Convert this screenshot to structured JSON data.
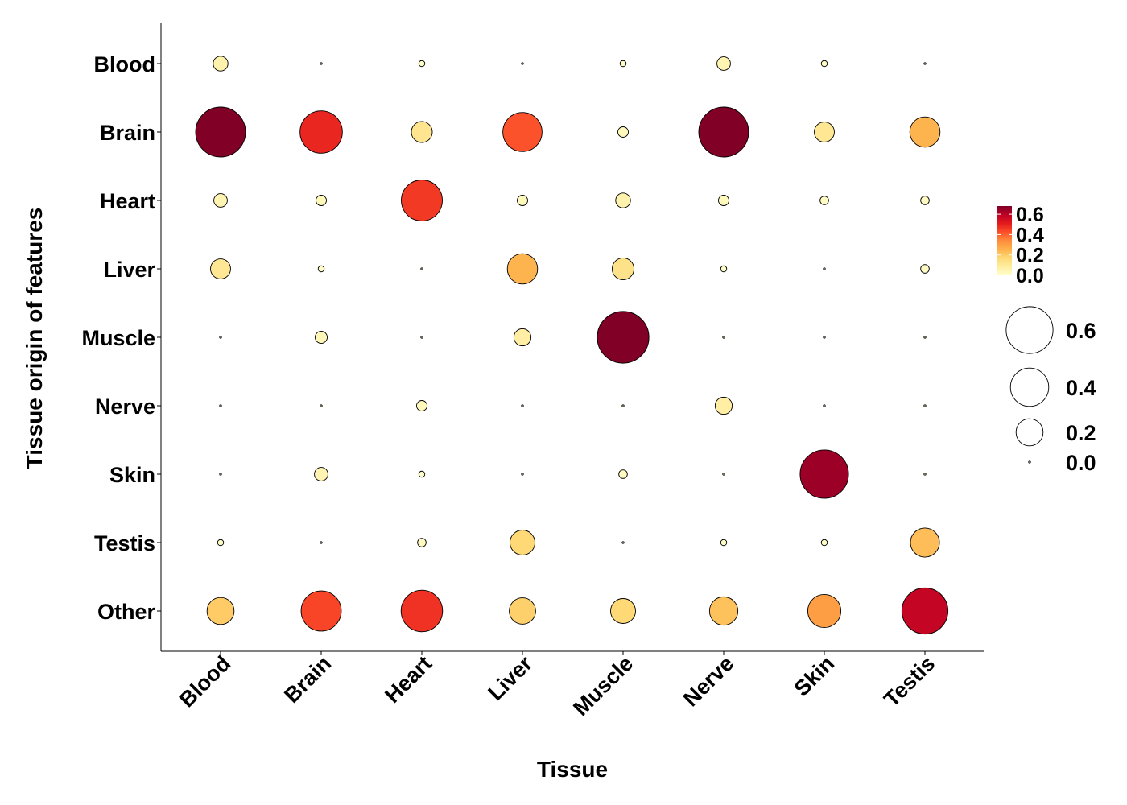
{
  "chart_data": {
    "type": "bubble-heatmap",
    "title": "",
    "xlabel": "Tissue",
    "ylabel": "Tissue origin of features",
    "x_categories": [
      "Blood",
      "Brain",
      "Heart",
      "Liver",
      "Muscle",
      "Nerve",
      "Skin",
      "Testis"
    ],
    "y_categories": [
      "Blood",
      "Brain",
      "Heart",
      "Liver",
      "Muscle",
      "Nerve",
      "Skin",
      "Testis",
      "Other"
    ],
    "values": [
      [
        0.06,
        0.0,
        0.01,
        0.0,
        0.01,
        0.05,
        0.01,
        0.0
      ],
      [
        0.68,
        0.49,
        0.12,
        0.42,
        0.03,
        0.68,
        0.11,
        0.25
      ],
      [
        0.05,
        0.03,
        0.46,
        0.03,
        0.06,
        0.03,
        0.02,
        0.02
      ],
      [
        0.11,
        0.01,
        0.0,
        0.25,
        0.13,
        0.01,
        0.0,
        0.02
      ],
      [
        0.0,
        0.04,
        0.0,
        0.08,
        0.73,
        0.0,
        0.0,
        0.0
      ],
      [
        0.0,
        0.0,
        0.03,
        0.0,
        0.0,
        0.08,
        0.0,
        0.0
      ],
      [
        0.0,
        0.05,
        0.01,
        0.0,
        0.02,
        0.0,
        0.64,
        0.0
      ],
      [
        0.01,
        0.0,
        0.02,
        0.17,
        0.0,
        0.01,
        0.01,
        0.23
      ],
      [
        0.2,
        0.44,
        0.47,
        0.19,
        0.17,
        0.22,
        0.3,
        0.58
      ]
    ],
    "color_scale": {
      "colors": [
        "#ffffcc",
        "#ffeda0",
        "#fed976",
        "#feb24c",
        "#fd8d3c",
        "#fc4e2a",
        "#e31a1c",
        "#bd0026",
        "#800026"
      ],
      "domain": [
        0,
        0.68
      ],
      "ticks": [
        "0.0",
        "0.2",
        "0.4",
        "0.6"
      ]
    },
    "size_legend": {
      "values": [
        0.6,
        0.4,
        0.2,
        0.0
      ],
      "labels": [
        "0.6",
        "0.4",
        "0.2",
        "0.0"
      ]
    },
    "legend_position": "right",
    "grid": false
  }
}
